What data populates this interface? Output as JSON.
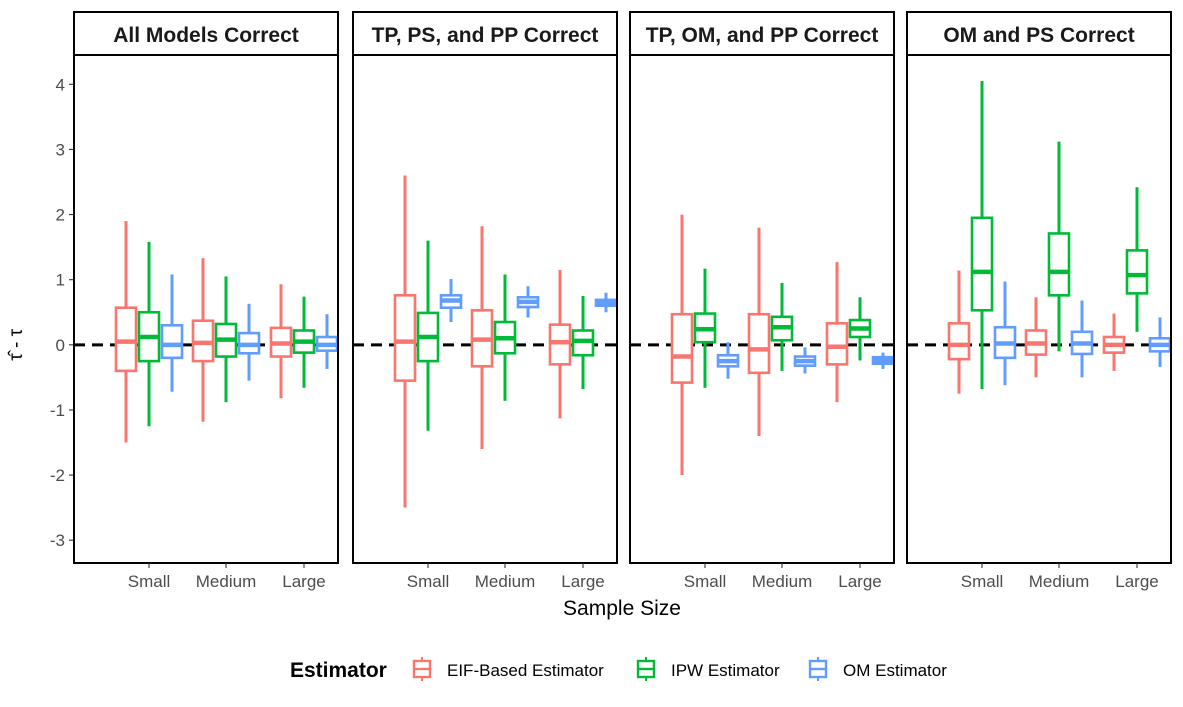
{
  "chart_data": {
    "type": "boxplot",
    "xlabel": "Sample Size",
    "ylabel": "τ̂ - τ",
    "ylim": [
      -3.35,
      4.45
    ],
    "yticks": [
      -3,
      -2,
      -1,
      0,
      1,
      2,
      3,
      4
    ],
    "reference_line": 0,
    "categories": [
      "Small",
      "Medium",
      "Large"
    ],
    "legend": {
      "title": "Estimator",
      "position": "bottom",
      "entries": [
        "EIF-Based Estimator",
        "IPW Estimator",
        "OM Estimator"
      ]
    },
    "series_colors": {
      "EIF-Based Estimator": "#F8766D",
      "IPW Estimator": "#00BA38",
      "OM Estimator": "#619CFF"
    },
    "panels": [
      {
        "title": "All Models Correct",
        "boxes": {
          "EIF-Based Estimator": [
            [
              -1.5,
              -0.4,
              0.05,
              0.57,
              1.9
            ],
            [
              -1.18,
              -0.25,
              0.03,
              0.37,
              1.33
            ],
            [
              -0.82,
              -0.18,
              0.02,
              0.26,
              0.93
            ]
          ],
          "IPW Estimator": [
            [
              -1.25,
              -0.25,
              0.12,
              0.5,
              1.58
            ],
            [
              -0.88,
              -0.18,
              0.08,
              0.32,
              1.05
            ],
            [
              -0.66,
              -0.12,
              0.05,
              0.22,
              0.74
            ]
          ],
          "OM Estimator": [
            [
              -0.72,
              -0.2,
              0.0,
              0.3,
              1.08
            ],
            [
              -0.55,
              -0.13,
              0.0,
              0.18,
              0.63
            ],
            [
              -0.37,
              -0.09,
              0.0,
              0.12,
              0.47
            ]
          ]
        }
      },
      {
        "title": "TP, PS, and PP Correct",
        "boxes": {
          "EIF-Based Estimator": [
            [
              -2.5,
              -0.55,
              0.05,
              0.76,
              2.6
            ],
            [
              -1.6,
              -0.33,
              0.08,
              0.53,
              1.82
            ],
            [
              -1.13,
              -0.3,
              0.04,
              0.31,
              1.15
            ]
          ],
          "IPW Estimator": [
            [
              -1.32,
              -0.25,
              0.12,
              0.49,
              1.6
            ],
            [
              -0.86,
              -0.13,
              0.1,
              0.35,
              1.08
            ],
            [
              -0.68,
              -0.16,
              0.06,
              0.22,
              0.75
            ]
          ],
          "OM Estimator": [
            [
              0.35,
              0.57,
              0.68,
              0.76,
              1.01
            ],
            [
              0.42,
              0.58,
              0.66,
              0.73,
              0.9
            ],
            [
              0.5,
              0.6,
              0.65,
              0.69,
              0.8
            ]
          ]
        }
      },
      {
        "title": "TP, OM, and PP Correct",
        "boxes": {
          "EIF-Based Estimator": [
            [
              -2.0,
              -0.58,
              -0.18,
              0.47,
              2.0
            ],
            [
              -1.4,
              -0.43,
              -0.07,
              0.47,
              1.8
            ],
            [
              -0.88,
              -0.3,
              -0.03,
              0.33,
              1.27
            ]
          ],
          "IPW Estimator": [
            [
              -0.66,
              0.04,
              0.24,
              0.48,
              1.17
            ],
            [
              -0.4,
              0.07,
              0.27,
              0.43,
              0.95
            ],
            [
              -0.24,
              0.12,
              0.25,
              0.38,
              0.73
            ]
          ],
          "OM Estimator": [
            [
              -0.52,
              -0.33,
              -0.25,
              -0.16,
              0.04
            ],
            [
              -0.44,
              -0.32,
              -0.25,
              -0.18,
              -0.04
            ],
            [
              -0.37,
              -0.29,
              -0.24,
              -0.19,
              -0.12
            ]
          ]
        }
      },
      {
        "title": "OM and PS Correct",
        "boxes": {
          "EIF-Based Estimator": [
            [
              -0.75,
              -0.22,
              0.0,
              0.33,
              1.14
            ],
            [
              -0.5,
              -0.15,
              0.02,
              0.22,
              0.73
            ],
            [
              -0.4,
              -0.12,
              0.0,
              0.12,
              0.48
            ]
          ],
          "IPW Estimator": [
            [
              -0.68,
              0.53,
              1.12,
              1.95,
              4.05
            ],
            [
              -0.1,
              0.76,
              1.12,
              1.71,
              3.12
            ],
            [
              0.2,
              0.79,
              1.07,
              1.45,
              2.42
            ]
          ],
          "OM Estimator": [
            [
              -0.62,
              -0.2,
              0.02,
              0.27,
              0.97
            ],
            [
              -0.5,
              -0.14,
              0.02,
              0.2,
              0.68
            ],
            [
              -0.34,
              -0.1,
              0.0,
              0.1,
              0.42
            ]
          ]
        }
      }
    ]
  }
}
